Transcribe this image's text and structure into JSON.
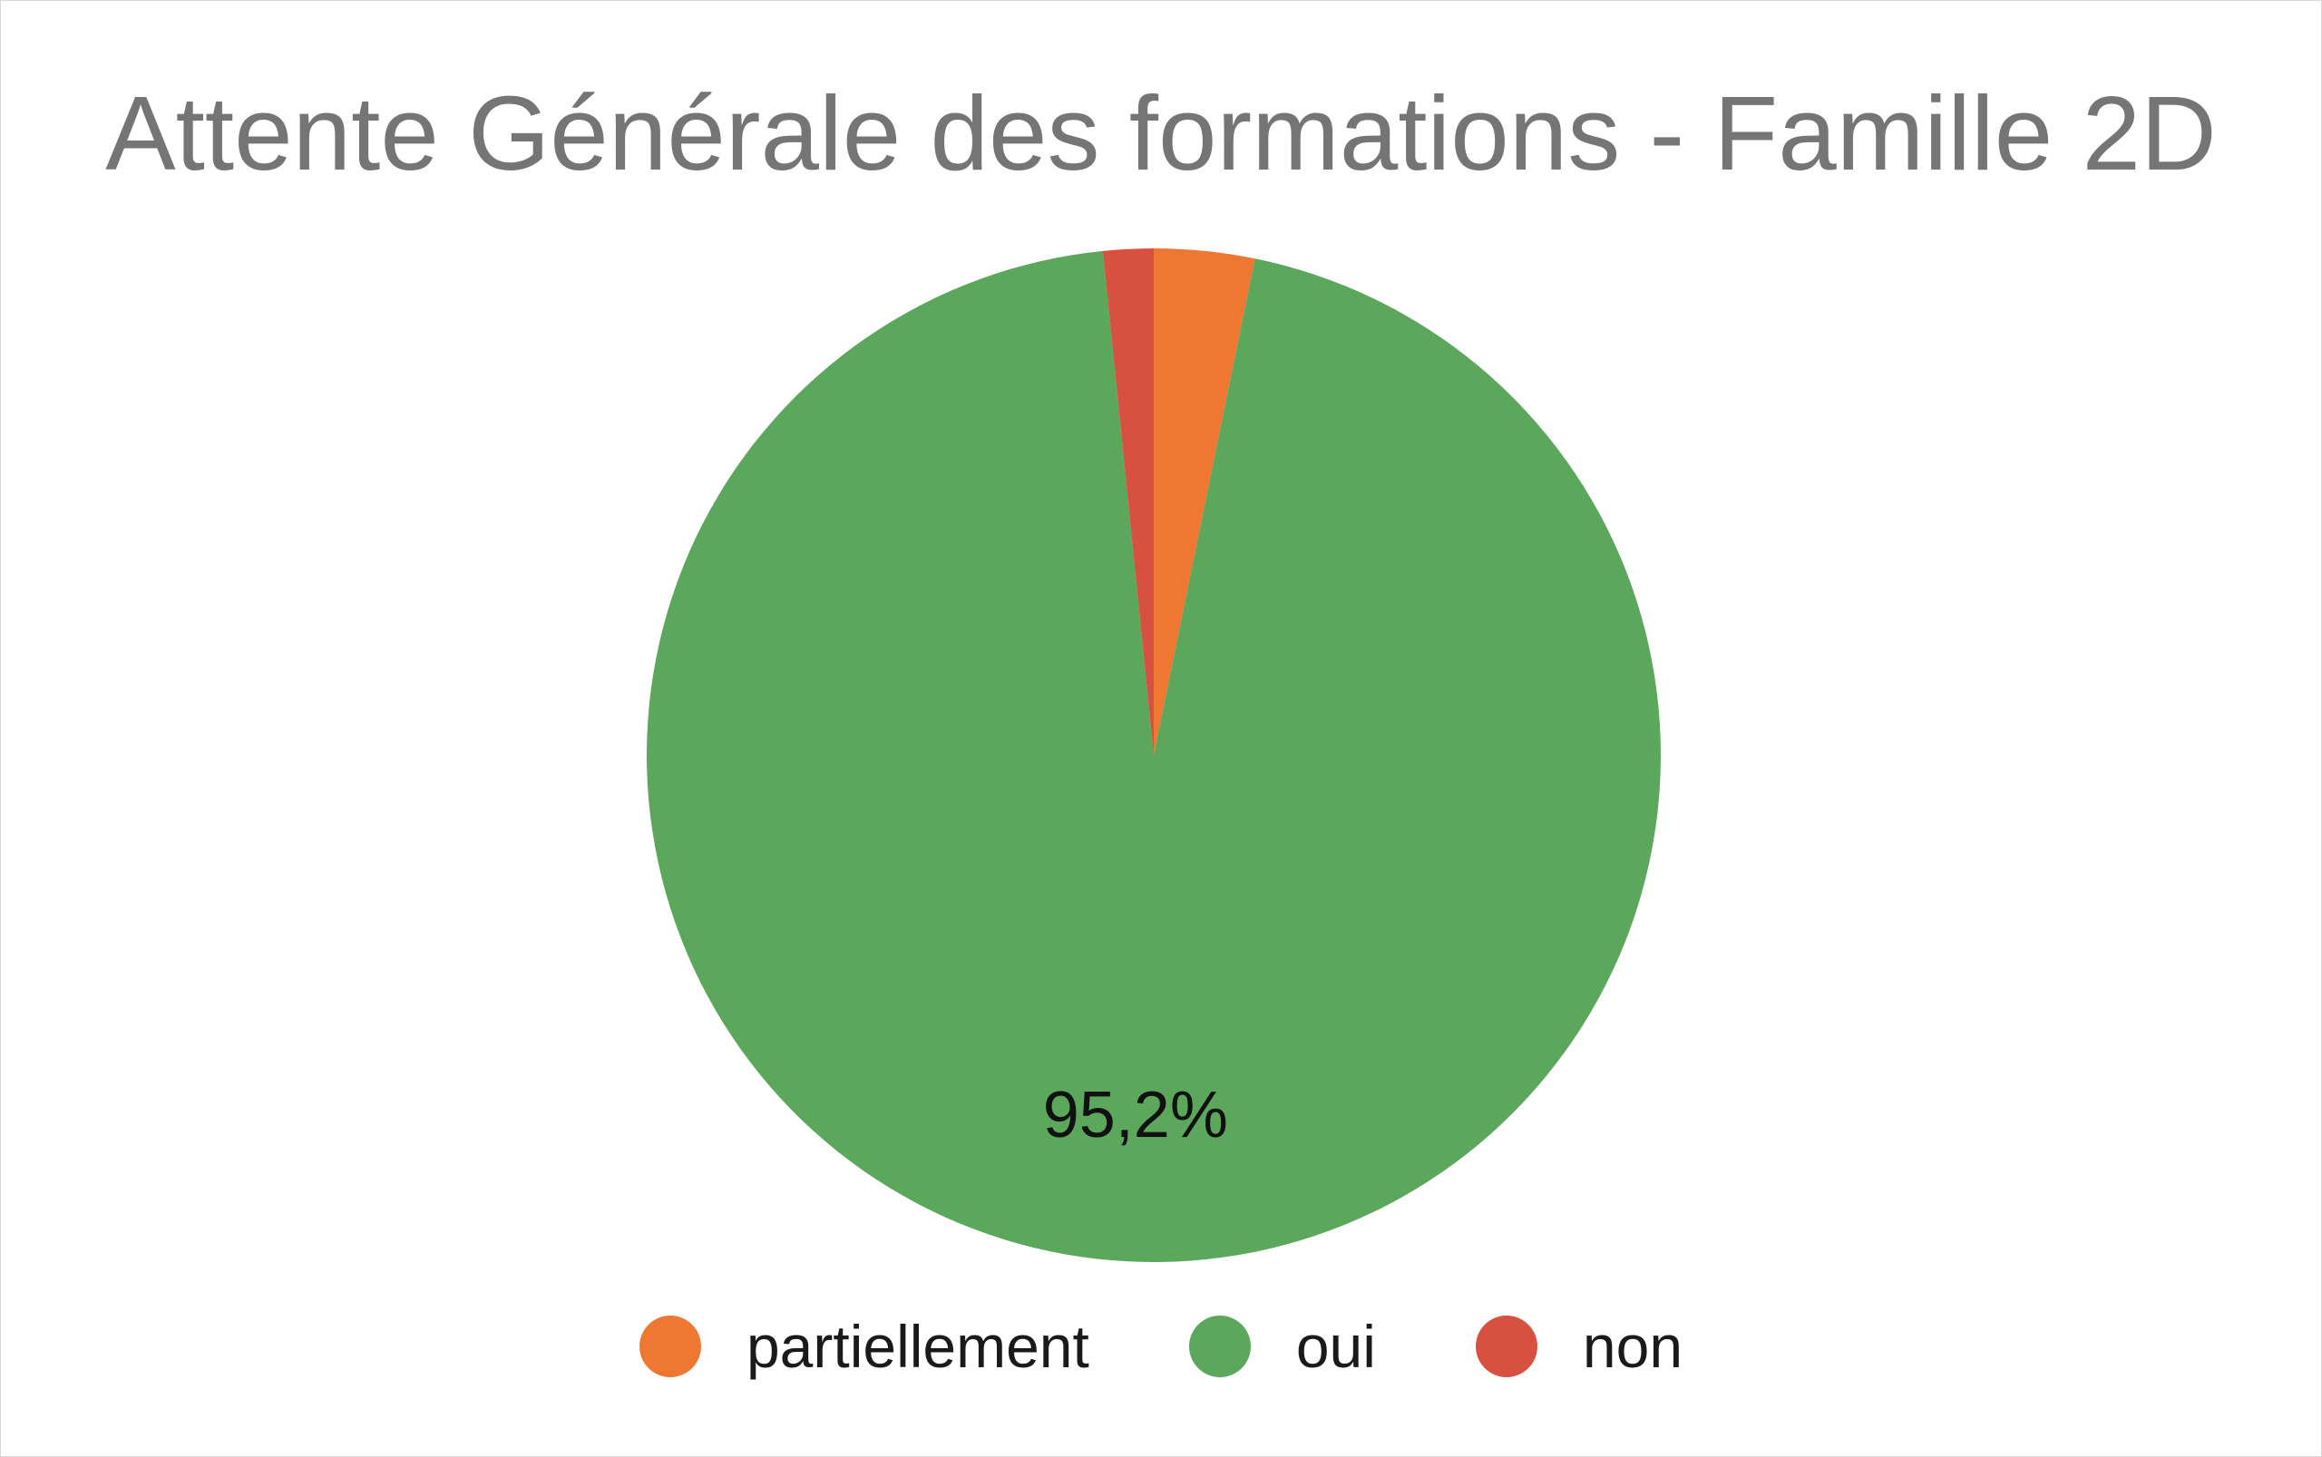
{
  "chart_data": {
    "type": "pie",
    "title": "Attente Générale des formations - Famille 2D",
    "categories": [
      "partiellement",
      "oui",
      "non"
    ],
    "values": [
      3.2,
      95.2,
      1.6
    ],
    "colors": [
      "#ee7732",
      "#5ba75c",
      "#d85040"
    ],
    "start_angle_deg": 0,
    "direction": "clockwise",
    "data_labels": [
      {
        "category": "oui",
        "text": "95,2%"
      }
    ],
    "legend_position": "bottom"
  }
}
